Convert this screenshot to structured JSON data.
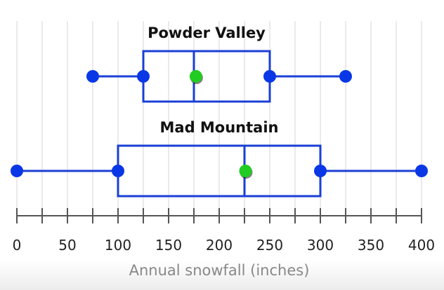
{
  "chart_data": {
    "type": "boxplot",
    "xlabel": "Annual snowfall (inches)",
    "xlim": [
      0,
      400
    ],
    "x_ticks": [
      0,
      50,
      100,
      150,
      200,
      250,
      300,
      350,
      400
    ],
    "minor_tick_step": 25,
    "grid": true,
    "series": [
      {
        "name": "Powder Valley",
        "min": 75,
        "q1": 125,
        "median": 175,
        "q3": 250,
        "max": 325,
        "mean": 177
      },
      {
        "name": "Mad Mountain",
        "min": 0,
        "q1": 100,
        "median": 225,
        "q3": 300,
        "max": 400,
        "mean": 226
      }
    ],
    "colors": {
      "box": "#1a3fd6",
      "whisker_point": "#0a37e6",
      "mean_point": "#22cc22",
      "grid": "#d4d4d4",
      "axis": "#555555",
      "tick_label": "#222222",
      "xlabel": "#888888"
    }
  }
}
